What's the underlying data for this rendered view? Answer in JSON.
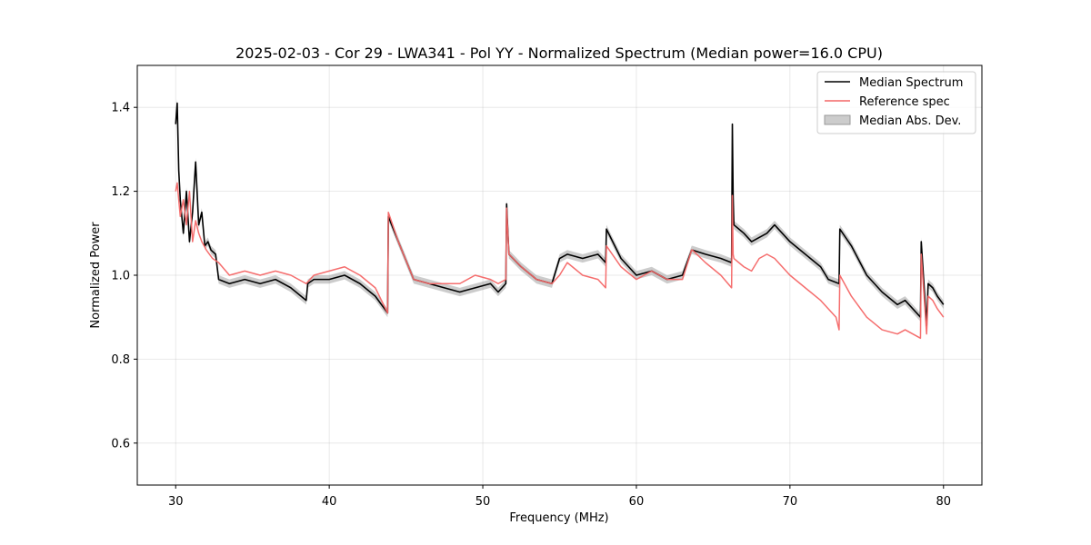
{
  "chart_data": {
    "type": "line",
    "title": "2025-02-03 - Cor 29 - LWA341 - Pol YY - Normalized Spectrum (Median power=16.0 CPU)",
    "xlabel": "Frequency (MHz)",
    "ylabel": "Normalized Power",
    "xlim": [
      27.5,
      82.5
    ],
    "ylim": [
      0.5,
      1.5
    ],
    "xticks": [
      30,
      40,
      50,
      60,
      70,
      80
    ],
    "yticks": [
      0.6,
      0.8,
      1.0,
      1.2,
      1.4
    ],
    "xtick_labels": [
      "30",
      "40",
      "50",
      "60",
      "70",
      "80"
    ],
    "ytick_labels": [
      "0.6",
      "0.8",
      "1.0",
      "1.2",
      "1.4"
    ],
    "grid": true,
    "legend_position": "upper right",
    "legend": [
      "Median Spectrum",
      "Reference spec",
      "Median Abs. Dev."
    ],
    "series": [
      {
        "name": "Median Spectrum",
        "color": "#000000",
        "mad": 0.01,
        "x": [
          30.0,
          30.1,
          30.2,
          30.3,
          30.5,
          30.7,
          30.9,
          31.1,
          31.3,
          31.5,
          31.7,
          31.9,
          32.1,
          32.3,
          32.6,
          32.8,
          33.5,
          34.5,
          35.5,
          36.5,
          37.5,
          38.5,
          38.6,
          39.0,
          40.0,
          41.0,
          42.0,
          43.0,
          43.8,
          43.85,
          44.5,
          45.5,
          46.5,
          47.5,
          48.5,
          49.5,
          50.5,
          51.0,
          51.5,
          51.55,
          51.7,
          52.5,
          53.5,
          54.5,
          55.0,
          55.5,
          56.5,
          57.5,
          58.0,
          58.05,
          59.0,
          60.0,
          61.0,
          62.0,
          63.0,
          63.6,
          63.65,
          64.5,
          65.5,
          66.2,
          66.25,
          66.3,
          66.35,
          67.0,
          67.5,
          68.0,
          68.5,
          69.0,
          69.5,
          70.0,
          71.0,
          72.0,
          72.5,
          73.2,
          73.25,
          74.0,
          75.0,
          76.0,
          77.0,
          77.5,
          78.0,
          78.5,
          78.55,
          78.9,
          79.0,
          79.3,
          79.6,
          80.0
        ],
        "values": [
          1.36,
          1.41,
          1.25,
          1.18,
          1.1,
          1.2,
          1.08,
          1.15,
          1.27,
          1.12,
          1.15,
          1.07,
          1.08,
          1.06,
          1.05,
          0.99,
          0.98,
          0.99,
          0.98,
          0.99,
          0.97,
          0.94,
          0.98,
          0.99,
          0.99,
          1.0,
          0.98,
          0.95,
          0.91,
          1.14,
          1.08,
          0.99,
          0.98,
          0.97,
          0.96,
          0.97,
          0.98,
          0.96,
          0.98,
          1.17,
          1.05,
          1.02,
          0.99,
          0.98,
          1.04,
          1.05,
          1.04,
          1.05,
          1.03,
          1.11,
          1.04,
          1.0,
          1.01,
          0.99,
          1.0,
          1.06,
          1.06,
          1.05,
          1.04,
          1.03,
          1.36,
          1.19,
          1.12,
          1.1,
          1.08,
          1.09,
          1.1,
          1.12,
          1.1,
          1.08,
          1.05,
          1.02,
          0.99,
          0.98,
          1.11,
          1.07,
          1.0,
          0.96,
          0.93,
          0.94,
          0.92,
          0.9,
          1.08,
          0.88,
          0.98,
          0.97,
          0.95,
          0.93
        ]
      },
      {
        "name": "Reference spec",
        "color": "#f46666",
        "x": [
          30.0,
          30.1,
          30.3,
          30.5,
          30.7,
          30.9,
          31.1,
          31.3,
          31.5,
          31.7,
          32.0,
          32.4,
          32.8,
          33.5,
          34.5,
          35.5,
          36.5,
          37.5,
          38.5,
          39.0,
          40.0,
          41.0,
          42.0,
          43.0,
          43.8,
          43.85,
          44.5,
          45.5,
          46.5,
          47.5,
          48.5,
          49.5,
          50.5,
          51.0,
          51.5,
          51.55,
          51.7,
          52.5,
          53.5,
          54.5,
          55.0,
          55.5,
          56.5,
          57.5,
          58.0,
          58.05,
          59.0,
          60.0,
          61.0,
          62.0,
          63.0,
          63.6,
          63.65,
          64.5,
          65.5,
          66.2,
          66.25,
          66.3,
          66.35,
          67.0,
          67.5,
          68.0,
          68.5,
          69.0,
          69.5,
          70.0,
          71.0,
          72.0,
          73.0,
          73.2,
          73.25,
          74.0,
          75.0,
          76.0,
          77.0,
          77.5,
          78.0,
          78.5,
          78.55,
          78.9,
          79.0,
          79.3,
          79.6,
          80.0
        ],
        "values": [
          1.2,
          1.22,
          1.14,
          1.18,
          1.12,
          1.2,
          1.08,
          1.13,
          1.1,
          1.08,
          1.06,
          1.04,
          1.03,
          1.0,
          1.01,
          1.0,
          1.01,
          1.0,
          0.98,
          1.0,
          1.01,
          1.02,
          1.0,
          0.97,
          0.91,
          1.15,
          1.08,
          0.99,
          0.98,
          0.98,
          0.98,
          1.0,
          0.99,
          0.98,
          0.99,
          1.16,
          1.05,
          1.02,
          0.99,
          0.98,
          1.0,
          1.03,
          1.0,
          0.99,
          0.97,
          1.07,
          1.02,
          0.99,
          1.01,
          0.99,
          0.99,
          1.06,
          1.06,
          1.03,
          1.0,
          0.97,
          1.19,
          1.05,
          1.04,
          1.02,
          1.01,
          1.04,
          1.05,
          1.04,
          1.02,
          1.0,
          0.97,
          0.94,
          0.9,
          0.87,
          1.0,
          0.95,
          0.9,
          0.87,
          0.86,
          0.87,
          0.86,
          0.85,
          1.05,
          0.86,
          0.95,
          0.94,
          0.92,
          0.9
        ]
      }
    ]
  }
}
